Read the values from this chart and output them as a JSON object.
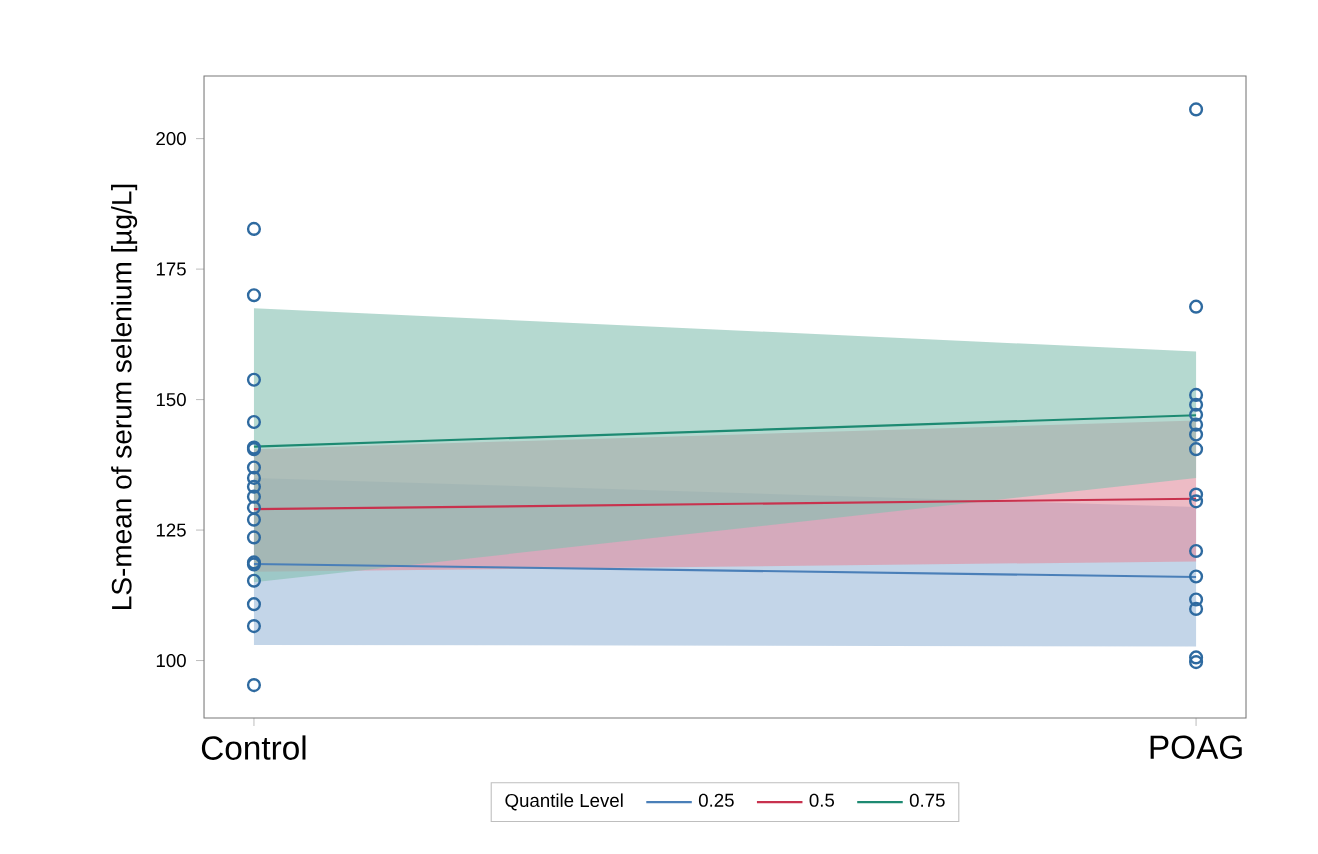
{
  "chart_data": {
    "type": "line",
    "ylabel": "LS-mean of serum selenium [µg/L]",
    "legend_title": "Quantile Level",
    "categories": [
      "Control",
      "POAG"
    ],
    "ylim": [
      89,
      212
    ],
    "yticks": [
      100,
      125,
      150,
      175,
      200
    ],
    "legend": "bottom",
    "grid": false,
    "marker": "none",
    "series": [
      {
        "name": "0.25",
        "color": "#4a7fb8",
        "values": [
          118.5,
          116
        ],
        "lower": [
          103,
          102.7
        ],
        "upper": [
          135,
          129.4
        ]
      },
      {
        "name": "0.5",
        "color": "#c8324e",
        "values": [
          129,
          131
        ],
        "lower": [
          117,
          119
        ],
        "upper": [
          140.5,
          146
        ]
      },
      {
        "name": "0.75",
        "color": "#1d8a72",
        "values": [
          141,
          147
        ],
        "lower": [
          115,
          135
        ],
        "upper": [
          167.5,
          159.2
        ]
      },
      {
        "type": "scatter",
        "marker": "circle",
        "color": "#2e6aa0",
        "x": [
          "Control",
          "Control",
          "Control",
          "Control",
          "Control",
          "Control",
          "Control",
          "Control",
          "Control",
          "Control",
          "Control",
          "Control",
          "Control",
          "Control",
          "Control",
          "Control",
          "Control",
          "Control",
          "Control",
          "POAG",
          "POAG",
          "POAG",
          "POAG",
          "POAG",
          "POAG",
          "POAG",
          "POAG",
          "POAG",
          "POAG",
          "POAG",
          "POAG",
          "POAG",
          "POAG",
          "POAG",
          "POAG"
        ],
        "values": [
          182.7,
          170,
          153.8,
          145.7,
          140.8,
          140.5,
          137,
          135,
          133.3,
          131.4,
          129.3,
          127,
          123.6,
          118.8,
          118.4,
          115.3,
          110.8,
          106.6,
          95.3,
          205.6,
          167.8,
          150.9,
          149,
          147.1,
          145.2,
          143.3,
          140.5,
          131.8,
          130.5,
          121,
          116.1,
          111.7,
          109.9,
          100.6,
          99.7
        ]
      }
    ]
  }
}
